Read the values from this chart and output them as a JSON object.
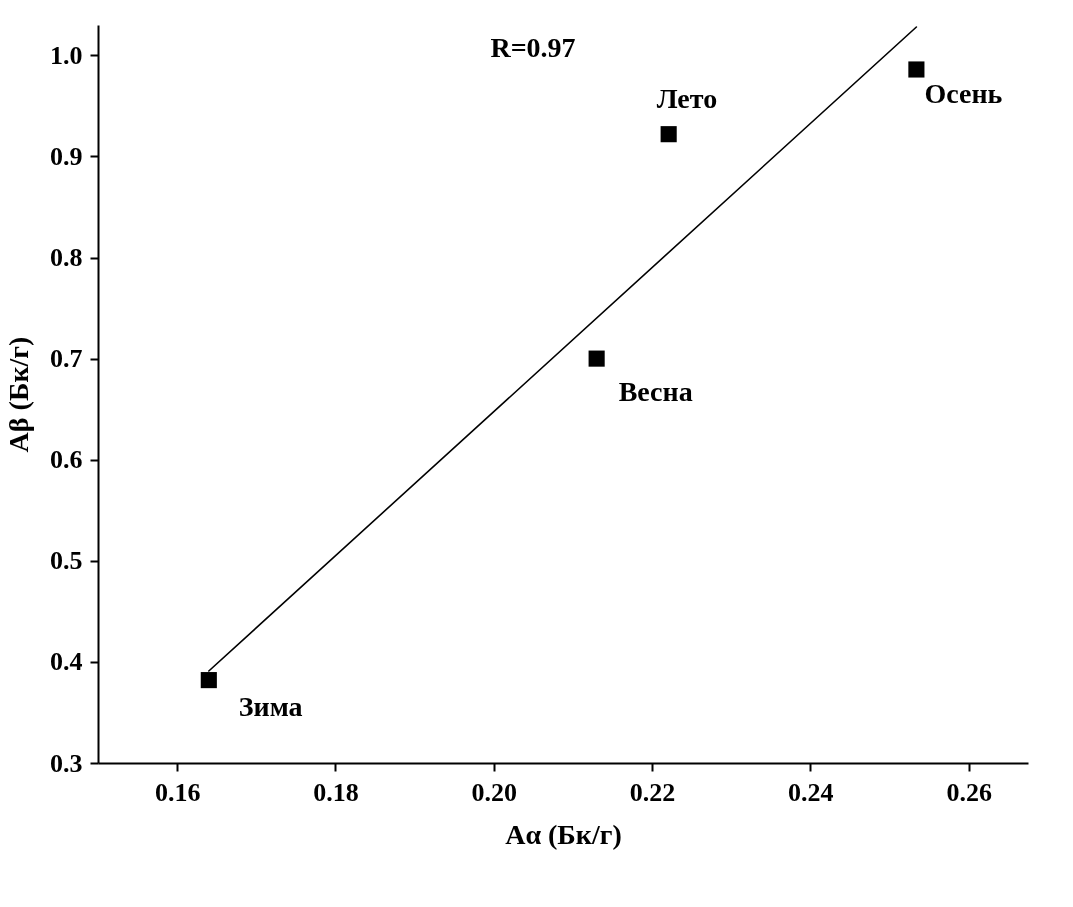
{
  "chart_data": {
    "type": "scatter",
    "xlabel": "Aα (Бк/г)",
    "ylabel": "Aβ (Бк/г)",
    "xlim": [
      0.15,
      0.2675
    ],
    "ylim": [
      0.3,
      1.03
    ],
    "xticks": [
      0.16,
      0.18,
      {
        "value": 0.2,
        "label": "0.20"
      },
      0.22,
      0.24,
      0.26
    ],
    "yticks": [
      0.3,
      0.4,
      0.5,
      0.6,
      0.7,
      0.8,
      0.9,
      {
        "value": 1.0,
        "label": "1.0"
      }
    ],
    "grid": false,
    "series": [
      {
        "marker": "square",
        "color": "#000000",
        "x": [
          0.164,
          0.213,
          0.2221,
          0.2534
        ],
        "values": [
          0.382,
          0.7,
          0.922,
          0.986
        ]
      },
      {
        "type": "line",
        "color": "#000000",
        "x": [
          0.164,
          0.2534
        ],
        "values": [
          0.391,
          1.028
        ]
      }
    ],
    "annotations": [
      "R=0.97",
      "Зима",
      "Весна",
      "Лето",
      "Осень"
    ]
  }
}
